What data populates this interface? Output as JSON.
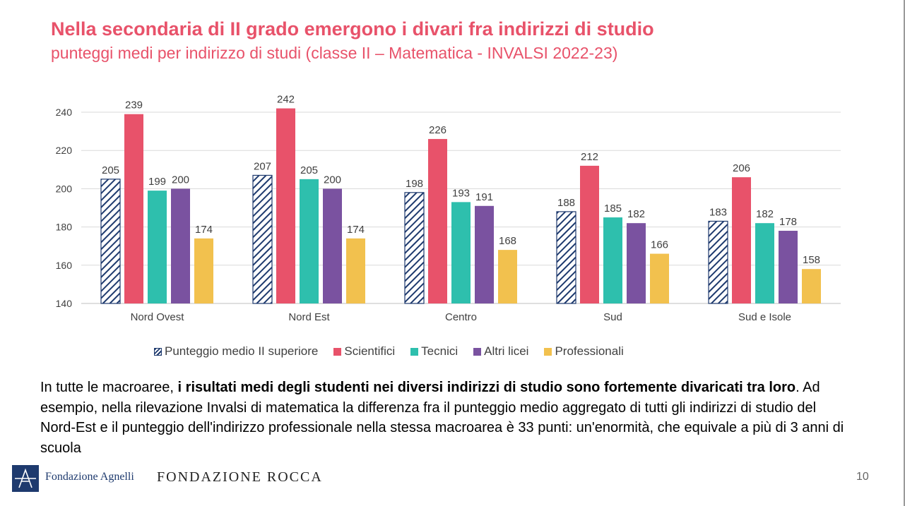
{
  "title": "Nella secondaria di II grado emergono i divari fra indirizzi di studio",
  "subtitle": "punteggi medi per indirizzo di studi (classe II – Matematica - INVALSI 2022-23)",
  "chart_data": {
    "type": "bar",
    "categories": [
      "Nord Ovest",
      "Nord Est",
      "Centro",
      "Sud",
      "Sud e Isole"
    ],
    "series": [
      {
        "name": "Punteggio medio II superiore",
        "values": [
          205,
          207,
          198,
          188,
          183
        ],
        "color": "#1e3a6e",
        "pattern": "hatched"
      },
      {
        "name": "Scientifici",
        "values": [
          239,
          242,
          226,
          212,
          206
        ],
        "color": "#e8526a"
      },
      {
        "name": "Tecnici",
        "values": [
          199,
          205,
          193,
          185,
          182
        ],
        "color": "#2ebfad"
      },
      {
        "name": "Altri licei",
        "values": [
          200,
          200,
          191,
          182,
          178
        ],
        "color": "#7a52a0"
      },
      {
        "name": "Professionali",
        "values": [
          174,
          174,
          168,
          166,
          158
        ],
        "color": "#f2c14e"
      }
    ],
    "yticks": [
      "140",
      "160",
      "180",
      "200",
      "220",
      "240"
    ],
    "ylim": [
      140,
      250
    ],
    "grid": true,
    "legend_position": "bottom",
    "xlabel": "",
    "ylabel": ""
  },
  "body": {
    "lead": "In tutte le macroaree, ",
    "bold": "i risultati medi degli studenti nei diversi indirizzi di studio sono fortemente divaricati tra loro",
    "rest": ". Ad esempio, nella rilevazione Invalsi di matematica la differenza fra il punteggio medio aggregato di tutti gli indirizzi di studio del Nord-Est e il punteggio dell'indirizzo professionale nella stessa macroarea è 33 punti: un'enormità, che equivale a più di 3 anni di scuola"
  },
  "footer": {
    "logo_agnelli": "Fondazione Agnelli",
    "logo_rocca": "FONDAZIONE ROCCA",
    "page_number": "10"
  }
}
